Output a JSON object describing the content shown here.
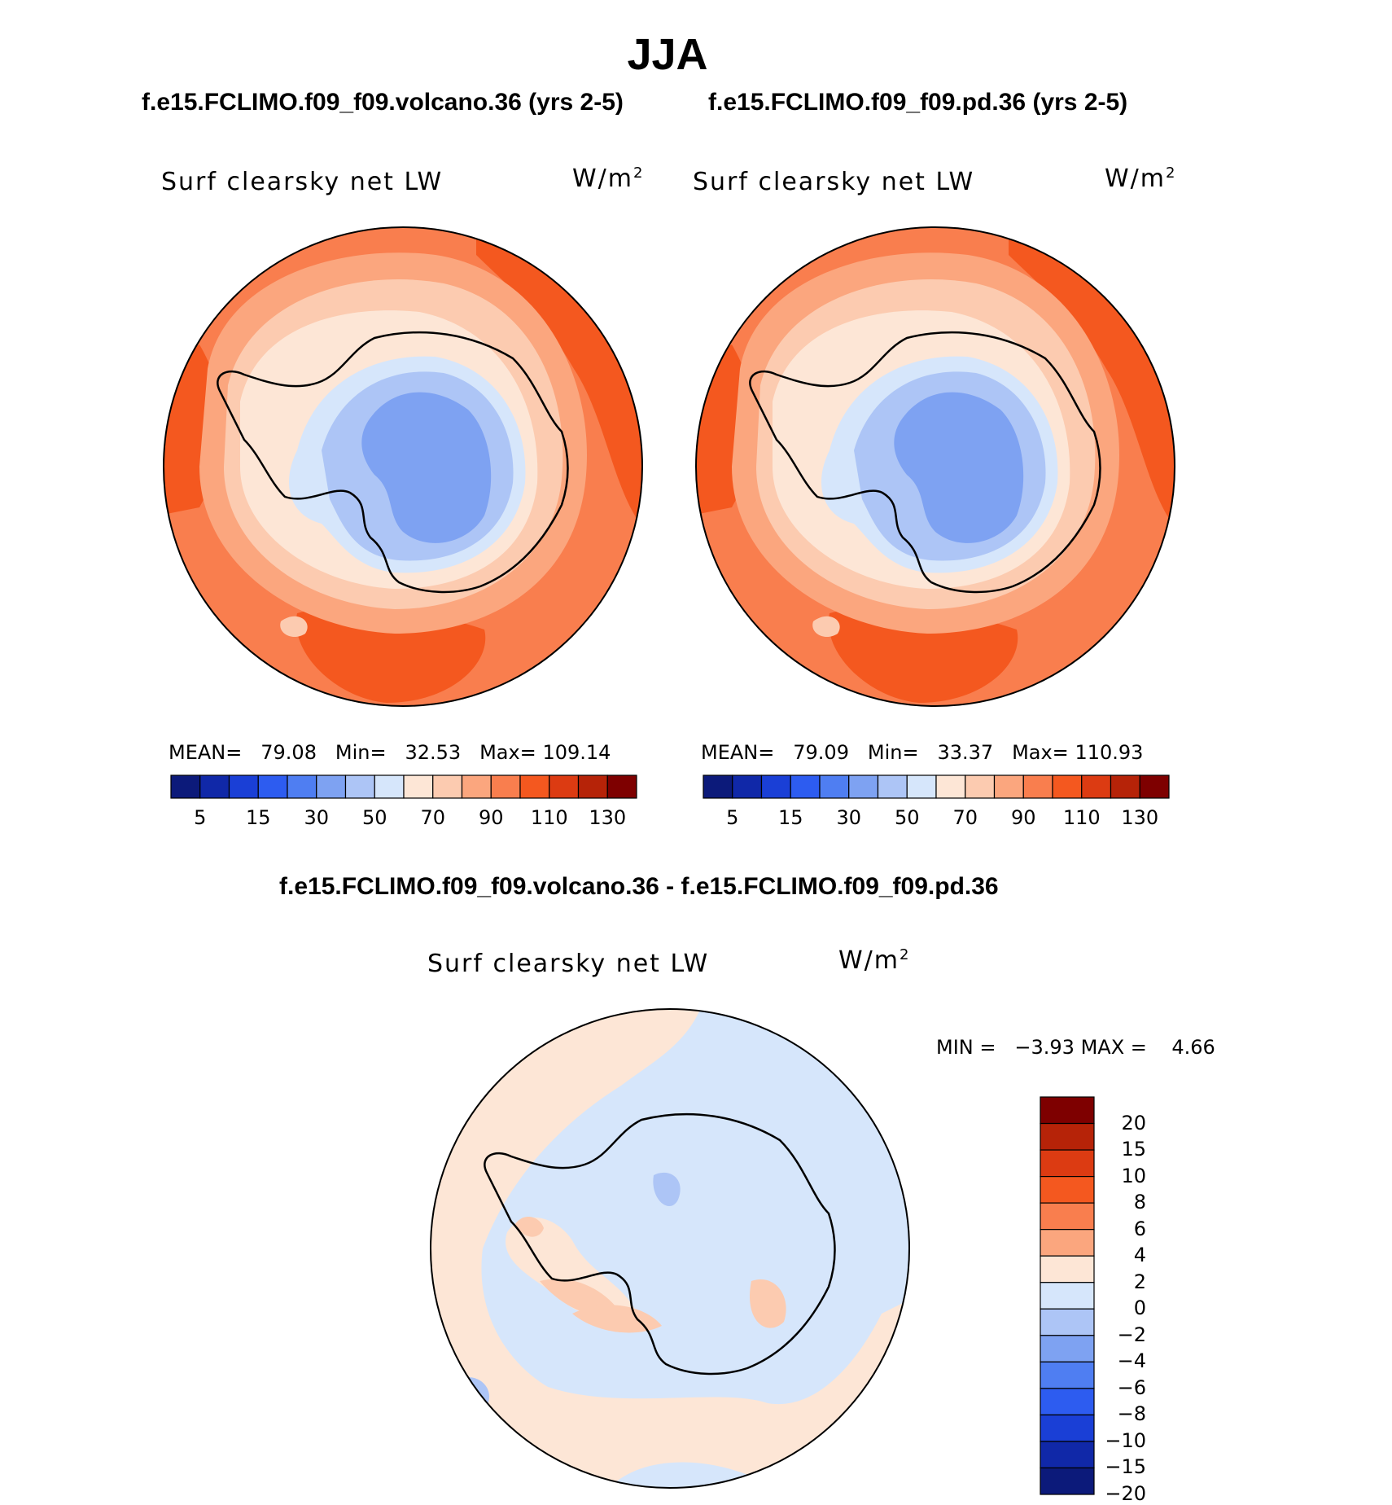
{
  "season": "JJA",
  "panels": [
    {
      "header": "f.e15.FCLIMO.f09_f09.volcano.36 (yrs 2-5)",
      "variable": "Surf clearsky net LW",
      "units": "W/m",
      "units_exp": "2",
      "mean_label": "MEAN=",
      "mean": "79.08",
      "min_label": "Min=",
      "min": "32.53",
      "max_label": "Max=",
      "max": "109.14"
    },
    {
      "header": "f.e15.FCLIMO.f09_f09.pd.36 (yrs 2-5)",
      "variable": "Surf clearsky net LW",
      "units": "W/m",
      "units_exp": "2",
      "mean_label": "MEAN=",
      "mean": "79.09",
      "min_label": "Min=",
      "min": "33.37",
      "max_label": "Max=",
      "max": "110.93"
    }
  ],
  "diff": {
    "header": "f.e15.FCLIMO.f09_f09.volcano.36 - f.e15.FCLIMO.f09_f09.pd.36",
    "variable": "Surf clearsky net LW",
    "units": "W/m",
    "units_exp": "2",
    "min_label": "MIN =",
    "min": "−3.93",
    "max_label": "MAX =",
    "max": "4.66"
  },
  "colorbar_mean": {
    "colors": [
      "#0c1a7a",
      "#1028a8",
      "#1a3fd6",
      "#2d5cf0",
      "#4f7ef2",
      "#7ea2f2",
      "#adc5f6",
      "#d6e6fb",
      "#fde6d6",
      "#fccbb0",
      "#fba67e",
      "#f97e4e",
      "#f4581f",
      "#dc3b12",
      "#b62308",
      "#7e0000"
    ],
    "ticks": [
      "5",
      "15",
      "30",
      "50",
      "70",
      "90",
      "110",
      "130"
    ]
  },
  "colorbar_diff": {
    "colors": [
      "#7e0000",
      "#b62308",
      "#dc3b12",
      "#f4581f",
      "#f97e4e",
      "#fba67e",
      "#fde6d6",
      "#d6e6fb",
      "#adc5f6",
      "#7ea2f2",
      "#4f7ef2",
      "#2d5cf0",
      "#1a3fd6",
      "#1028a8",
      "#0c1a7a"
    ],
    "ticks": [
      "20",
      "15",
      "10",
      "8",
      "6",
      "4",
      "2",
      "0",
      "−2",
      "−4",
      "−6",
      "−8",
      "−10",
      "−15",
      "−20"
    ]
  }
}
